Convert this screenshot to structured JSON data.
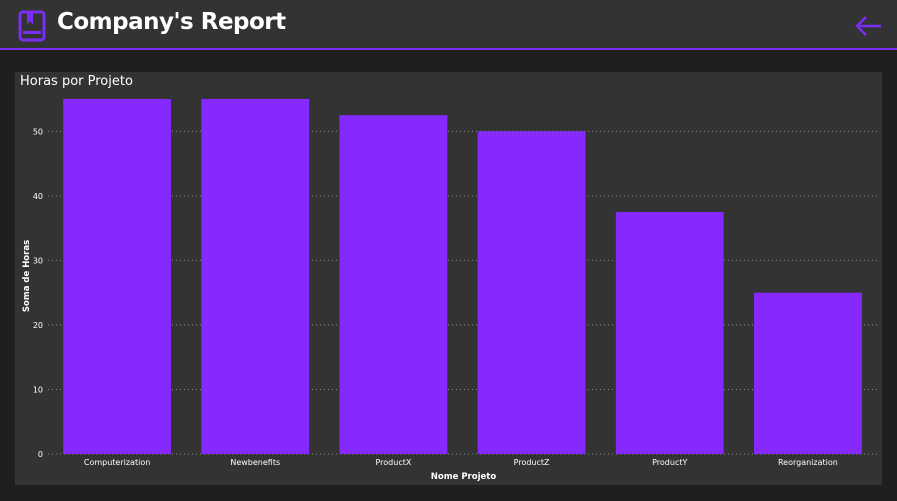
{
  "header": {
    "title": "Company's Report",
    "logo_icon": "book-icon",
    "back_icon": "arrow-left-icon",
    "accent_color": "#7b2cf5"
  },
  "chart_data": {
    "type": "bar",
    "title": "Horas por Projeto",
    "xlabel": "Nome Projeto",
    "ylabel": "Soma de Horas",
    "categories": [
      "Computerization",
      "Newbenefits",
      "ProductX",
      "ProductZ",
      "ProductY",
      "Reorganization"
    ],
    "values": [
      55,
      55,
      52.5,
      50,
      37.5,
      25
    ],
    "ylim": [
      0,
      55
    ],
    "yticks": [
      0,
      10,
      20,
      30,
      40,
      50
    ],
    "grid": true,
    "bar_color": "#8629ff"
  }
}
